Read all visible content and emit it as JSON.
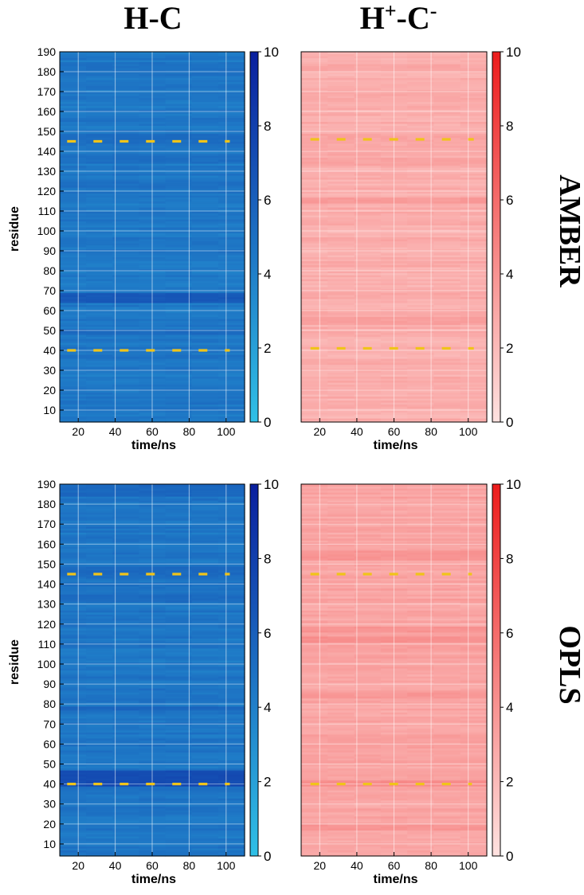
{
  "figure": {
    "column_titles": [
      {
        "base": "H",
        "sup": "",
        "mid": "-C",
        "sup2": ""
      },
      {
        "base": "H",
        "sup": "+",
        "mid": "-C",
        "sup2": "-"
      }
    ],
    "row_labels": [
      "AMBER",
      "OPLS"
    ]
  },
  "colors": {
    "blue_low": "#2fc0e6",
    "blue_high": "#0a1f9e",
    "red_low": "#ffe2e0",
    "red_high": "#ec1c1c",
    "marker": "#f0c419",
    "grid": "#ffffff"
  },
  "chart_data": [
    {
      "type": "heatmap",
      "id": "amber-hc",
      "title": "H-C",
      "row": "AMBER",
      "colormap": "blue",
      "xlabel": "time/ns",
      "ylabel": "residue",
      "xlim": [
        10,
        110
      ],
      "ylim": [
        4,
        190
      ],
      "xticks": [
        20,
        40,
        60,
        80,
        100
      ],
      "yticks": [
        10,
        20,
        30,
        40,
        50,
        60,
        70,
        80,
        90,
        100,
        110,
        120,
        130,
        140,
        150,
        160,
        170,
        180,
        190
      ],
      "color_range": [
        0,
        10
      ],
      "colorbar_ticks": [
        0,
        2,
        4,
        6,
        8,
        10
      ],
      "base_value": 4.5,
      "bands": [
        {
          "residues": [
            64,
            68
          ],
          "value": 6.4
        },
        {
          "residues": [
            48,
            50
          ],
          "value": 5.3
        },
        {
          "residues": [
            134,
            137
          ],
          "value": 5.1
        },
        {
          "residues": [
            122,
            124
          ],
          "value": 5.0
        },
        {
          "residues": [
            144,
            148
          ],
          "value": 5.2
        },
        {
          "residues": [
            179,
            184
          ],
          "value": 4.9
        }
      ],
      "marker_lines": [
        145,
        40
      ],
      "marker_x_range": [
        14,
        102
      ]
    },
    {
      "type": "heatmap",
      "id": "amber-hpcm",
      "title": "H+-C-",
      "row": "AMBER",
      "colormap": "red",
      "xlabel": "time/ns",
      "ylabel": "",
      "xlim": [
        10,
        110
      ],
      "ylim": [
        4,
        190
      ],
      "xticks": [
        20,
        40,
        60,
        80,
        100
      ],
      "yticks": [],
      "color_range": [
        0,
        10
      ],
      "colorbar_ticks": [
        0,
        2,
        4,
        6,
        8,
        10
      ],
      "base_value": 2.6,
      "bands": [
        {
          "residues": [
            53,
            56
          ],
          "value": 3.4
        },
        {
          "residues": [
            114,
            116
          ],
          "value": 3.6
        },
        {
          "residues": [
            133,
            136
          ],
          "value": 3.2
        },
        {
          "residues": [
            145,
            148
          ],
          "value": 3.1
        },
        {
          "residues": [
            180,
            183
          ],
          "value": 3.0
        }
      ],
      "marker_lines": [
        146,
        41
      ],
      "marker_x_range": [
        15,
        103
      ]
    },
    {
      "type": "heatmap",
      "id": "opls-hc",
      "title": "H-C",
      "row": "OPLS",
      "colormap": "blue",
      "xlabel": "time/ns",
      "ylabel": "residue",
      "xlim": [
        10,
        110
      ],
      "ylim": [
        4,
        190
      ],
      "xticks": [
        20,
        40,
        60,
        80,
        100
      ],
      "yticks": [
        10,
        20,
        30,
        40,
        50,
        60,
        70,
        80,
        90,
        100,
        110,
        120,
        130,
        140,
        150,
        160,
        170,
        180,
        190
      ],
      "color_range": [
        0,
        10
      ],
      "colorbar_ticks": [
        0,
        2,
        4,
        6,
        8,
        10
      ],
      "base_value": 4.6,
      "bands": [
        {
          "residues": [
            39,
            46
          ],
          "value": 7.2
        },
        {
          "residues": [
            77,
            78
          ],
          "value": 5.6
        },
        {
          "residues": [
            131,
            134
          ],
          "value": 5.3
        },
        {
          "residues": [
            144,
            148
          ],
          "value": 5.4
        },
        {
          "residues": [
            184,
            190
          ],
          "value": 5.5
        }
      ],
      "marker_lines": [
        145,
        40
      ],
      "marker_x_range": [
        14,
        102
      ]
    },
    {
      "type": "heatmap",
      "id": "opls-hpcm",
      "title": "H+-C-",
      "row": "OPLS",
      "colormap": "red",
      "xlabel": "time/ns",
      "ylabel": "",
      "xlim": [
        10,
        110
      ],
      "ylim": [
        4,
        190
      ],
      "xticks": [
        20,
        40,
        60,
        80,
        100
      ],
      "yticks": [],
      "color_range": [
        0,
        10
      ],
      "colorbar_ticks": [
        0,
        2,
        4,
        6,
        8,
        10
      ],
      "base_value": 3.1,
      "bands": [
        {
          "residues": [
            39,
            41
          ],
          "value": 4.4
        },
        {
          "residues": [
            111,
            113
          ],
          "value": 4.2
        },
        {
          "residues": [
            116,
            118
          ],
          "value": 4.0
        },
        {
          "residues": [
            152,
            156
          ],
          "value": 3.9
        },
        {
          "residues": [
            17,
            19
          ],
          "value": 3.9
        },
        {
          "residues": [
            83,
            85
          ],
          "value": 3.8
        }
      ],
      "marker_lines": [
        145,
        40
      ],
      "marker_x_range": [
        15,
        102
      ]
    }
  ]
}
